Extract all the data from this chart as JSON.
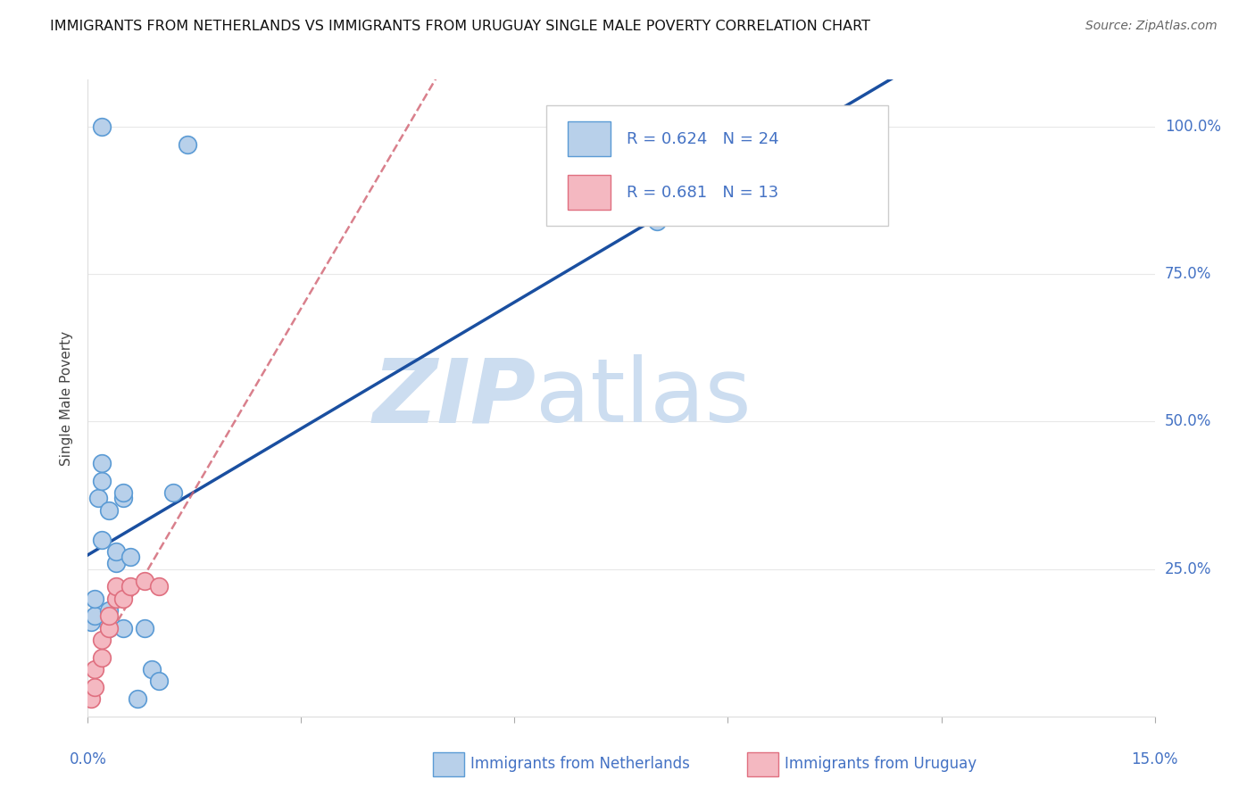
{
  "title": "IMMIGRANTS FROM NETHERLANDS VS IMMIGRANTS FROM URUGUAY SINGLE MALE POVERTY CORRELATION CHART",
  "source": "Source: ZipAtlas.com",
  "ylabel": "Single Male Poverty",
  "ytick_labels": [
    "",
    "25.0%",
    "50.0%",
    "75.0%",
    "100.0%"
  ],
  "ytick_values": [
    0.0,
    0.25,
    0.5,
    0.75,
    1.0
  ],
  "xlim": [
    0.0,
    0.15
  ],
  "ylim": [
    0.0,
    1.08
  ],
  "netherlands_x": [
    0.0005,
    0.001,
    0.001,
    0.0015,
    0.002,
    0.002,
    0.002,
    0.003,
    0.003,
    0.003,
    0.004,
    0.004,
    0.005,
    0.005,
    0.005,
    0.006,
    0.007,
    0.008,
    0.009,
    0.01,
    0.012,
    0.014,
    0.002,
    0.08
  ],
  "netherlands_y": [
    0.16,
    0.17,
    0.2,
    0.37,
    0.4,
    0.43,
    0.3,
    0.35,
    0.15,
    0.18,
    0.26,
    0.28,
    0.37,
    0.38,
    0.15,
    0.27,
    0.03,
    0.15,
    0.08,
    0.06,
    0.38,
    0.97,
    1.0,
    0.84
  ],
  "uruguay_x": [
    0.0005,
    0.001,
    0.001,
    0.002,
    0.002,
    0.003,
    0.003,
    0.004,
    0.004,
    0.005,
    0.006,
    0.008,
    0.01
  ],
  "uruguay_y": [
    0.03,
    0.05,
    0.08,
    0.1,
    0.13,
    0.15,
    0.17,
    0.2,
    0.22,
    0.2,
    0.22,
    0.23,
    0.22
  ],
  "netherlands_color": "#b8d0ea",
  "netherlands_edge_color": "#5b9bd5",
  "uruguay_color": "#f4b8c1",
  "uruguay_edge_color": "#e07080",
  "netherlands_R": 0.624,
  "netherlands_N": 24,
  "uruguay_R": 0.681,
  "uruguay_N": 13,
  "regression_netherlands_color": "#1a4fa0",
  "regression_uruguay_color": "#d06070",
  "watermark_zip": "ZIP",
  "watermark_atlas": "atlas",
  "watermark_color_zip": "#ccddf0",
  "watermark_color_atlas": "#ccddf0",
  "legend_text_color": "#4472c4",
  "background_color": "#ffffff",
  "grid_color": "#e8e8e8",
  "bottom_legend_nl": "Immigrants from Netherlands",
  "bottom_legend_uy": "Immigrants from Uruguay"
}
